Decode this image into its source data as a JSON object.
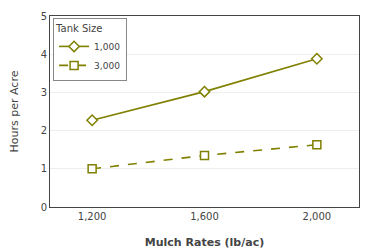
{
  "chart_data": {
    "type": "line",
    "xlabel": "Mulch Rates (lb/ac)",
    "ylabel": "Hours per Acre",
    "legend_title": "Tank Size",
    "x": [
      1200,
      1600,
      2000
    ],
    "series": [
      {
        "name": "1,000",
        "color": "#808000",
        "values": [
          2.27,
          3.02,
          3.88
        ],
        "marker": "diamond",
        "line_style": "solid"
      },
      {
        "name": "3,000",
        "color": "#808000",
        "values": [
          1.0,
          1.35,
          1.63
        ],
        "marker": "square",
        "line_style": "dashed"
      }
    ],
    "xlim": [
      1050,
      2150
    ],
    "xticks": [
      {
        "value": 1200,
        "label": "1,200"
      },
      {
        "value": 1600,
        "label": "1,600"
      },
      {
        "value": 2000,
        "label": "2,000"
      }
    ],
    "ylim": [
      0,
      5
    ],
    "yticks": [
      0,
      1,
      2,
      3,
      4,
      5
    ],
    "grid": "y",
    "legend": "upper left"
  }
}
